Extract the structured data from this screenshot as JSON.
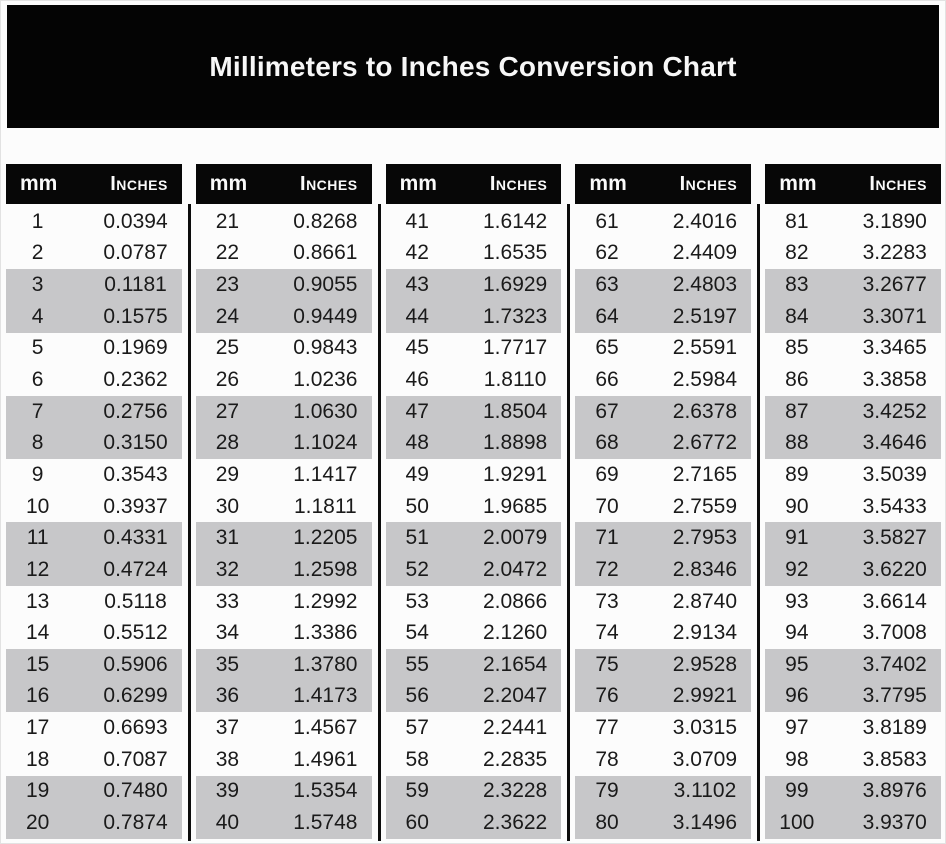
{
  "title": "Millimeters to Inches Conversion Chart",
  "header": {
    "mm_label": "mm",
    "inches_label": "Inches"
  },
  "layout": {
    "groups": 5,
    "rows_per_group": 20,
    "shading": "alternating pairs of rows"
  },
  "colors": {
    "banner_bg": "#040404",
    "banner_text": "#f7f7f7",
    "header_bg": "#070707",
    "header_text": "#fafafa",
    "row_bg": "#fcfcfc",
    "row_alt_bg": "#c7c7c9",
    "divider": "#0c0c0c",
    "data_text": "#1a1a1a"
  },
  "chart_data": {
    "type": "table",
    "title": "Millimeters to Inches Conversion Chart",
    "columns": [
      "mm",
      "Inches"
    ],
    "rows": [
      [
        "1",
        "0.0394"
      ],
      [
        "2",
        "0.0787"
      ],
      [
        "3",
        "0.1181"
      ],
      [
        "4",
        "0.1575"
      ],
      [
        "5",
        "0.1969"
      ],
      [
        "6",
        "0.2362"
      ],
      [
        "7",
        "0.2756"
      ],
      [
        "8",
        "0.3150"
      ],
      [
        "9",
        "0.3543"
      ],
      [
        "10",
        "0.3937"
      ],
      [
        "11",
        "0.4331"
      ],
      [
        "12",
        "0.4724"
      ],
      [
        "13",
        "0.5118"
      ],
      [
        "14",
        "0.5512"
      ],
      [
        "15",
        "0.5906"
      ],
      [
        "16",
        "0.6299"
      ],
      [
        "17",
        "0.6693"
      ],
      [
        "18",
        "0.7087"
      ],
      [
        "19",
        "0.7480"
      ],
      [
        "20",
        "0.7874"
      ],
      [
        "21",
        "0.8268"
      ],
      [
        "22",
        "0.8661"
      ],
      [
        "23",
        "0.9055"
      ],
      [
        "24",
        "0.9449"
      ],
      [
        "25",
        "0.9843"
      ],
      [
        "26",
        "1.0236"
      ],
      [
        "27",
        "1.0630"
      ],
      [
        "28",
        "1.1024"
      ],
      [
        "29",
        "1.1417"
      ],
      [
        "30",
        "1.1811"
      ],
      [
        "31",
        "1.2205"
      ],
      [
        "32",
        "1.2598"
      ],
      [
        "33",
        "1.2992"
      ],
      [
        "34",
        "1.3386"
      ],
      [
        "35",
        "1.3780"
      ],
      [
        "36",
        "1.4173"
      ],
      [
        "37",
        "1.4567"
      ],
      [
        "38",
        "1.4961"
      ],
      [
        "39",
        "1.5354"
      ],
      [
        "40",
        "1.5748"
      ],
      [
        "41",
        "1.6142"
      ],
      [
        "42",
        "1.6535"
      ],
      [
        "43",
        "1.6929"
      ],
      [
        "44",
        "1.7323"
      ],
      [
        "45",
        "1.7717"
      ],
      [
        "46",
        "1.8110"
      ],
      [
        "47",
        "1.8504"
      ],
      [
        "48",
        "1.8898"
      ],
      [
        "49",
        "1.9291"
      ],
      [
        "50",
        "1.9685"
      ],
      [
        "51",
        "2.0079"
      ],
      [
        "52",
        "2.0472"
      ],
      [
        "53",
        "2.0866"
      ],
      [
        "54",
        "2.1260"
      ],
      [
        "55",
        "2.1654"
      ],
      [
        "56",
        "2.2047"
      ],
      [
        "57",
        "2.2441"
      ],
      [
        "58",
        "2.2835"
      ],
      [
        "59",
        "2.3228"
      ],
      [
        "60",
        "2.3622"
      ],
      [
        "61",
        "2.4016"
      ],
      [
        "62",
        "2.4409"
      ],
      [
        "63",
        "2.4803"
      ],
      [
        "64",
        "2.5197"
      ],
      [
        "65",
        "2.5591"
      ],
      [
        "66",
        "2.5984"
      ],
      [
        "67",
        "2.6378"
      ],
      [
        "68",
        "2.6772"
      ],
      [
        "69",
        "2.7165"
      ],
      [
        "70",
        "2.7559"
      ],
      [
        "71",
        "2.7953"
      ],
      [
        "72",
        "2.8346"
      ],
      [
        "73",
        "2.8740"
      ],
      [
        "74",
        "2.9134"
      ],
      [
        "75",
        "2.9528"
      ],
      [
        "76",
        "2.9921"
      ],
      [
        "77",
        "3.0315"
      ],
      [
        "78",
        "3.0709"
      ],
      [
        "79",
        "3.1102"
      ],
      [
        "80",
        "3.1496"
      ],
      [
        "81",
        "3.1890"
      ],
      [
        "82",
        "3.2283"
      ],
      [
        "83",
        "3.2677"
      ],
      [
        "84",
        "3.3071"
      ],
      [
        "85",
        "3.3465"
      ],
      [
        "86",
        "3.3858"
      ],
      [
        "87",
        "3.4252"
      ],
      [
        "88",
        "3.4646"
      ],
      [
        "89",
        "3.5039"
      ],
      [
        "90",
        "3.5433"
      ],
      [
        "91",
        "3.5827"
      ],
      [
        "92",
        "3.6220"
      ],
      [
        "93",
        "3.6614"
      ],
      [
        "94",
        "3.7008"
      ],
      [
        "95",
        "3.7402"
      ],
      [
        "96",
        "3.7795"
      ],
      [
        "97",
        "3.8189"
      ],
      [
        "98",
        "3.8583"
      ],
      [
        "99",
        "3.8976"
      ],
      [
        "100",
        "3.9370"
      ]
    ]
  }
}
